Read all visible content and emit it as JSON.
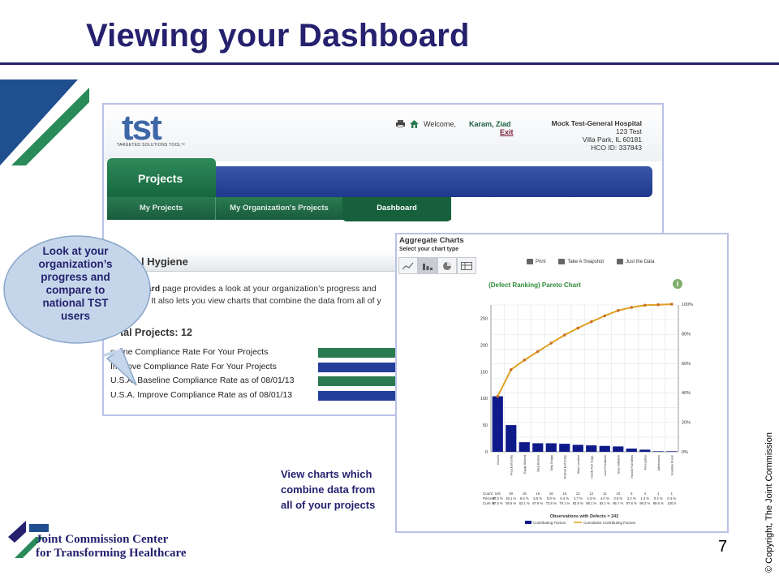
{
  "slide": {
    "title": "Viewing your Dashboard",
    "page_number": "7",
    "copyright": "© Copyright, The Joint Commission",
    "footer_org_line1": "Joint Commission Center",
    "footer_org_line2": "for Transforming Healthcare",
    "callout": [
      "Look at your",
      "organization’s",
      "progress and",
      "compare to",
      "national TST",
      "users"
    ],
    "note": [
      "View charts which",
      "combine data from",
      "all of your projects"
    ],
    "colors": {
      "title": "#25216e",
      "green": "#2a7a51",
      "blue": "#243f99"
    }
  },
  "tst": {
    "logo": "tst",
    "logo_sub": "TARGETED SOLUTIONS TOOL™",
    "welcome": "Welcome,",
    "user": "Karam, Ziad",
    "exit": "Exit",
    "hospital": {
      "name": "Mock Test-General Hospital",
      "address1": "123 Test",
      "address2": "Villa Park, IL 60181",
      "hco": "HCO ID: 337843"
    },
    "main_tab": "Projects",
    "subnav": [
      "My Projects",
      "My Organization's Projects",
      "Dashboard"
    ],
    "section_title": "l Hygiene",
    "intro_bold": "board",
    "intro_rest": " page provides a look at your organization’s progress and",
    "intro_line2": "ST. It also lets you view charts that combine the data from all of y",
    "total": "tal Projects: 12",
    "metrics": [
      {
        "label": "seline Compliance Rate For Your Projects",
        "color": "#2a7a51"
      },
      {
        "label": "Improve Compliance Rate For Your Projects",
        "color": "#243f99"
      },
      {
        "label": "U.S.A. Baseline Compliance Rate as of 08/01/13",
        "color": "#2a7a51"
      },
      {
        "label": "U.S.A. Improve Compliance Rate as of 08/01/13",
        "color": "#243f99"
      }
    ]
  },
  "agg": {
    "title": "Aggregate Charts",
    "subtitle": "Select your chart type",
    "chart_types": [
      "line-chart-icon",
      "bar-chart-icon",
      "pie-chart-icon",
      "table-icon"
    ],
    "actions": [
      "Print",
      "Take A Snapshot",
      "Just the Data"
    ],
    "chart_title": "(Defect Ranking) Pareto Chart",
    "info": "i"
  },
  "chart_data": {
    "type": "bar",
    "title": "(Defect Ranking) Pareto Chart",
    "categories": [
      "Gloves",
      "Freq Exit Entry",
      "Equip Shared",
      "Step Broken",
      "Step Empty",
      "Rollout Exit Entry",
      "Step Location",
      "Hands Full Supp.",
      "Lack Feedback",
      "Slow Initiation",
      "Hands Full Meds",
      "Perception",
      "Admissions",
      "Isolation Room"
    ],
    "values": [
      104,
      50,
      18,
      16,
      16,
      15,
      13,
      12,
      11,
      10,
      6,
      4,
      1,
      1
    ],
    "percent": [
      "37.5 %",
      "18.1 %",
      "6.5 %",
      "5.8 %",
      "5.8 %",
      "5.4 %",
      "4.7 %",
      "4.3 %",
      "4.0 %",
      "3.6 %",
      "2.2 %",
      "1.4 %",
      "0.4 %",
      "0.4 %"
    ],
    "cum_percent": [
      37.5,
      55.6,
      62.1,
      67.9,
      73.6,
      79.1,
      83.8,
      88.1,
      92.1,
      95.7,
      97.8,
      99.3,
      99.6,
      100.0
    ],
    "cum_labels": [
      "37.5 %",
      "55.6 %",
      "62.1 %",
      "67.9 %",
      "73.6 %",
      "79.1 %",
      "83.8 %",
      "88.1 %",
      "92.1 %",
      "95.7 %",
      "97.8 %",
      "99.3 %",
      "99.6 %",
      "100.0"
    ],
    "row_labels": [
      "Count",
      "Percent",
      "Cum %"
    ],
    "ylim": [
      0,
      275
    ],
    "yticks": [
      0,
      50,
      100,
      150,
      200,
      250
    ],
    "y2ticks": [
      "0%",
      "20%",
      "40%",
      "60%",
      "80%",
      "100%"
    ],
    "xlabel": "Observations with Defects = 242",
    "series": [
      {
        "name": "Contributing Factors",
        "color": "#0e1a8a"
      },
      {
        "name": "Cumulative Contributing Factors",
        "color": "#e0a020"
      }
    ],
    "grid": true
  }
}
